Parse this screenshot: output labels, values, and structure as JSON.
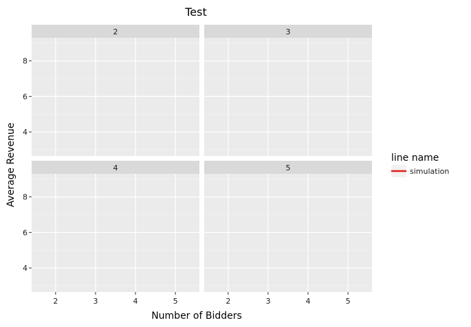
{
  "chart_data": {
    "type": "line",
    "title": "Test",
    "xlabel": "Number of Bidders",
    "ylabel": "Average Revenue",
    "facets": [
      "2",
      "3",
      "4",
      "5"
    ],
    "x_ticks": [
      2,
      3,
      4,
      5
    ],
    "y_ticks": [
      4,
      6,
      8
    ],
    "xlim": [
      1.4,
      5.6
    ],
    "ylim": [
      2.65,
      9.3
    ],
    "grid": true,
    "legend": {
      "title": "line name",
      "position": "right",
      "entries": [
        {
          "name": "simulation",
          "color": "#e41a1c"
        }
      ]
    },
    "series": [
      {
        "name": "simulation",
        "color": "#e41a1c",
        "x": [],
        "y": []
      }
    ]
  }
}
